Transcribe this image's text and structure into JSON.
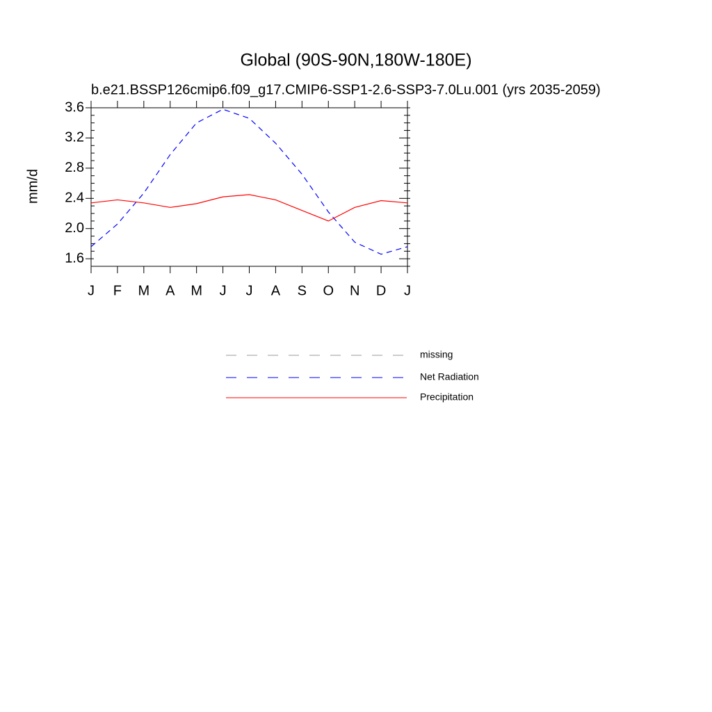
{
  "chart_data": {
    "type": "line",
    "title": "Global (90S-90N,180W-180E)",
    "subtitle": "b.e21.BSSP126cmip6.f09_g17.CMIP6-SSP1-2.6-SSP3-7.0Lu.001 (yrs 2035-2059)",
    "y_label": "mm/d",
    "categories": [
      "J",
      "F",
      "M",
      "A",
      "M",
      "J",
      "J",
      "A",
      "S",
      "O",
      "N",
      "D",
      "J"
    ],
    "series": [
      {
        "name": "missing",
        "color": "#999999",
        "dash": true,
        "values": [
          null,
          null,
          null,
          null,
          null,
          null,
          null,
          null,
          null,
          null,
          null,
          null,
          null
        ]
      },
      {
        "name": "Net Radiation",
        "color": "#0000ff",
        "dash": true,
        "values": [
          1.76,
          2.06,
          2.47,
          2.98,
          3.4,
          3.58,
          3.46,
          3.13,
          2.72,
          2.22,
          1.82,
          1.66,
          1.76
        ]
      },
      {
        "name": "Precipitation",
        "color": "#ff0000",
        "dash": false,
        "values": [
          2.34,
          2.38,
          2.34,
          2.28,
          2.33,
          2.42,
          2.45,
          2.38,
          2.24,
          2.1,
          2.28,
          2.37,
          2.34
        ]
      }
    ],
    "ylim": [
      1.5,
      3.6
    ],
    "yticks": [
      1.6,
      {
        "value": 2,
        "label": "2.0"
      },
      2.4,
      2.8,
      3.2,
      3.6
    ],
    "yminor_ticks": [
      1.5,
      1.7,
      1.8,
      1.9,
      2.1,
      2.2,
      2.3,
      2.5,
      2.6,
      2.7,
      2.9,
      3.0,
      3.1,
      3.3,
      3.4,
      3.5
    ]
  }
}
